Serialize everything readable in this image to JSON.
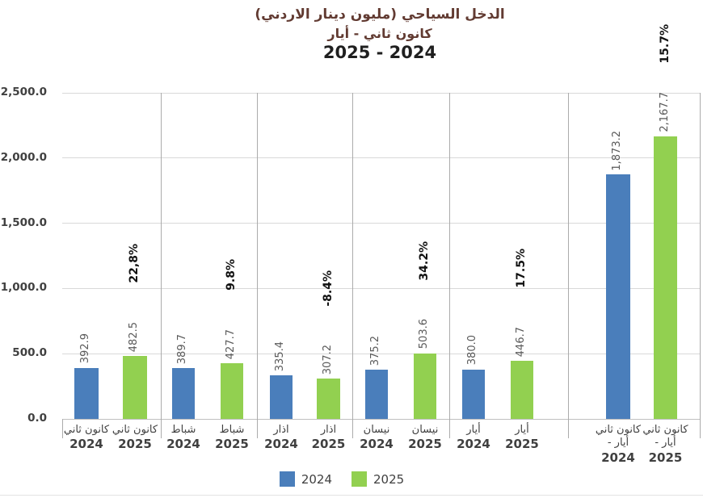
{
  "colors": {
    "title_text": "#623b32",
    "period_text": "#1f1f1f",
    "axis_text": "#404040",
    "value_label_text": "#595959",
    "pct_label_text": "#111111",
    "gridline": "#d9d9d9",
    "axis_line": "#bfbfbf",
    "separator": "#ababab",
    "bar_2024": "#4a7ebb",
    "bar_2025": "#92d050"
  },
  "chart_data": {
    "type": "bar",
    "title": "الدخل السياحي (مليون دينار الاردني)",
    "subtitle": "كانون ثاني - أيار",
    "period": "2025 - 2024",
    "categories": [
      "كانون ثاني",
      "شباط",
      "اذار",
      "نيسان",
      "أيار",
      "كانون ثاني - أيار"
    ],
    "category_label_lines": [
      [
        "كانون ثاني"
      ],
      [
        "شباط"
      ],
      [
        "اذار"
      ],
      [
        "نيسان"
      ],
      [
        "أيار"
      ],
      [
        "كانون ثاني",
        "- أيار"
      ]
    ],
    "series": [
      {
        "name": "2024",
        "color": "#4a7ebb",
        "values": [
          392.9,
          389.7,
          335.4,
          375.2,
          380.0,
          1873.2
        ],
        "value_labels": [
          "392.9",
          "389.7",
          "335.4",
          "375.2",
          "380.0",
          "1,873.2"
        ]
      },
      {
        "name": "2025",
        "color": "#92d050",
        "values": [
          482.5,
          427.7,
          307.2,
          503.6,
          446.7,
          2167.7
        ],
        "value_labels": [
          "482.5",
          "427.7",
          "307.2",
          "503.6",
          "446.7",
          "2,167.7"
        ]
      }
    ],
    "pct_change_labels": [
      "22,8%",
      "9.8%",
      "-8.4%",
      "34.2%",
      "17.5%",
      "15.7%"
    ],
    "ylim": [
      0,
      2500
    ],
    "ytick_step": 500,
    "ytick_labels": [
      "0.0",
      "500.0",
      "1,000.0",
      "1,500.0",
      "2,000.0",
      "2,500.0"
    ],
    "grid": true,
    "legend_position": "bottom"
  }
}
